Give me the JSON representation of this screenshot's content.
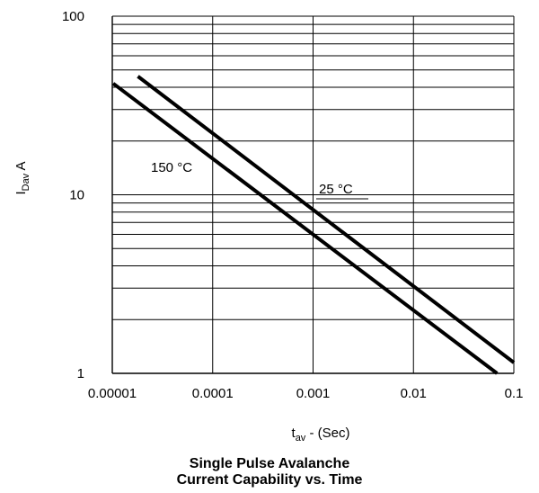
{
  "chart_data": {
    "type": "line",
    "title_line1": "Single Pulse Avalanche",
    "title_line2": "Current Capability vs. Time",
    "xlabel_main": "t",
    "xlabel_sub": "av",
    "xlabel_suffix": " - (Sec)",
    "ylabel_main": "I",
    "ylabel_sub": "Dav",
    "ylabel_suffix": " A",
    "x_scale": "log",
    "y_scale": "log",
    "xlim": [
      1e-05,
      0.1
    ],
    "ylim": [
      1,
      100
    ],
    "grid": true,
    "x_ticks": [
      {
        "value": 1e-05,
        "label": "0.00001"
      },
      {
        "value": 0.0001,
        "label": "0.0001"
      },
      {
        "value": 0.001,
        "label": "0.001"
      },
      {
        "value": 0.01,
        "label": "0.01"
      },
      {
        "value": 0.1,
        "label": "0.1"
      }
    ],
    "y_ticks": [
      {
        "value": 1,
        "label": "1"
      },
      {
        "value": 10,
        "label": "10"
      },
      {
        "value": 100,
        "label": "100"
      }
    ],
    "series": [
      {
        "name": "25 °C",
        "x": [
          1.8e-05,
          0.1
        ],
        "y": [
          46,
          1.15
        ]
      },
      {
        "name": "150 °C",
        "x": [
          1.02e-05,
          0.068
        ],
        "y": [
          42,
          1.0
        ]
      }
    ],
    "annotations": [
      {
        "text": "150 °C",
        "x": 1e-05,
        "y": 12.5
      },
      {
        "text": "25 °C",
        "x": 0.0011,
        "y": 8.3
      }
    ]
  }
}
